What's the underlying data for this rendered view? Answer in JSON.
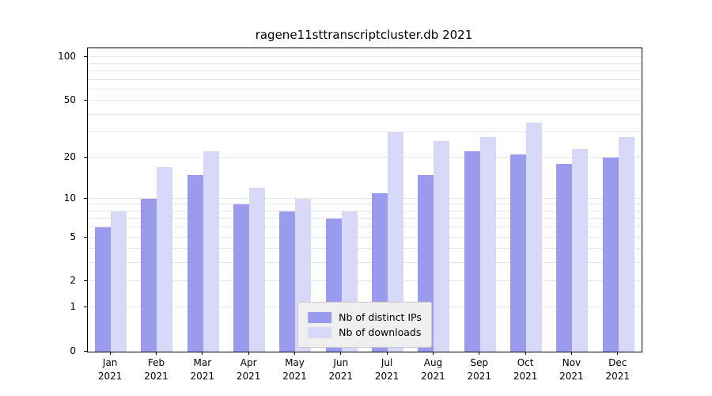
{
  "figure": {
    "title": "ragene11sttranscriptcluster.db 2021"
  },
  "chart_data": {
    "type": "bar",
    "title": "ragene11sttranscriptcluster.db 2021",
    "year_label": "2021",
    "categories": [
      "Jan",
      "Feb",
      "Mar",
      "Apr",
      "May",
      "Jun",
      "Jul",
      "Aug",
      "Sep",
      "Oct",
      "Nov",
      "Dec"
    ],
    "series": [
      {
        "name": "Nb of distinct IPs",
        "color": "#9b9bee",
        "values": [
          6,
          10,
          15,
          9,
          8,
          7,
          11,
          15,
          22,
          21,
          18,
          20
        ]
      },
      {
        "name": "Nb of downloads",
        "color": "#d8d8f8",
        "values": [
          8,
          17,
          22,
          12,
          10,
          8,
          30,
          26,
          28,
          35,
          23,
          28
        ]
      }
    ],
    "scale": "log1p",
    "ylim": [
      0,
      100
    ],
    "yticks": [
      0,
      1,
      2,
      5,
      10,
      20,
      50,
      100
    ],
    "gridlines": [
      1,
      2,
      3,
      4,
      5,
      6,
      7,
      8,
      9,
      10,
      20,
      30,
      40,
      50,
      60,
      70,
      80,
      90,
      100
    ],
    "grid": true,
    "legend_position": "lower center"
  }
}
